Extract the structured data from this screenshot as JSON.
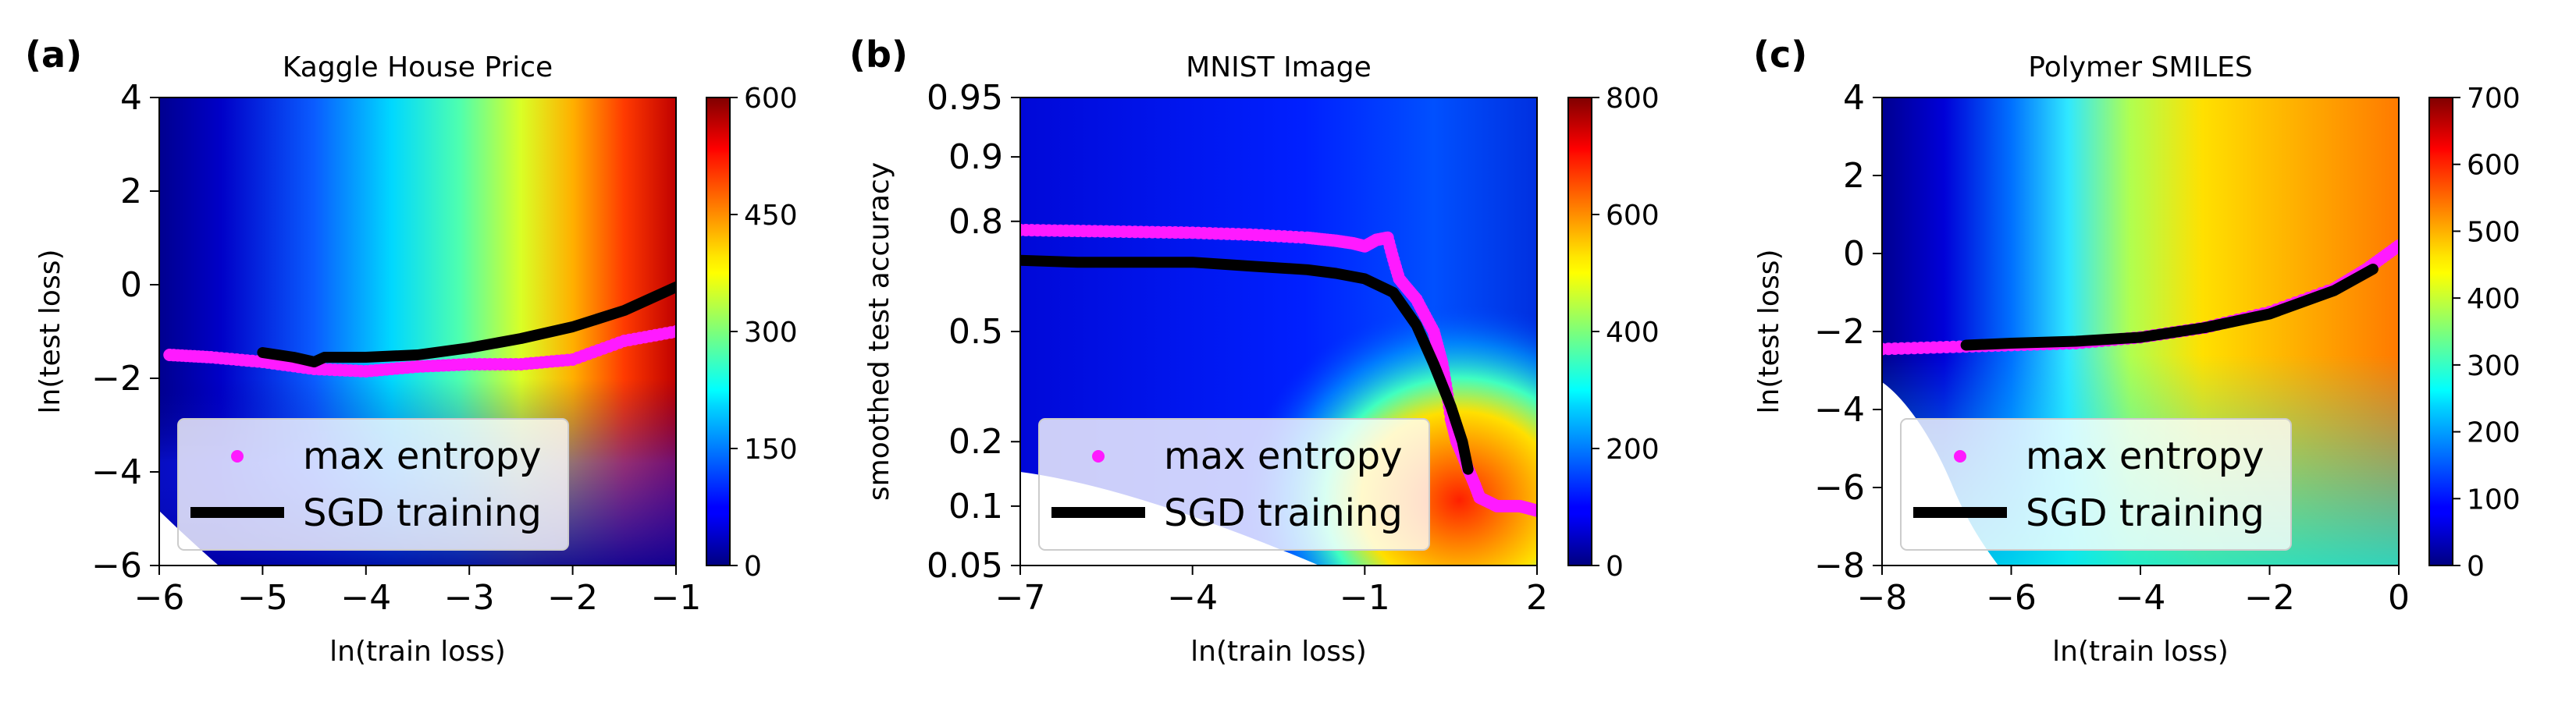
{
  "chart_data": [
    {
      "type": "heatmap",
      "panel_label": "(a)",
      "title": "Kaggle House Price",
      "xlabel": "ln(train loss)",
      "ylabel": "ln(test loss)",
      "xlim": [
        -6,
        -1
      ],
      "ylim": [
        -6,
        4
      ],
      "xticks": [
        -6,
        -5,
        -4,
        -3,
        -2,
        -1
      ],
      "yticks": [
        4,
        2,
        0,
        -2,
        -4,
        -6
      ],
      "xtick_labels": [
        "−6",
        "−5",
        "−4",
        "−3",
        "−2",
        "−1"
      ],
      "ytick_labels": [
        "4",
        "2",
        "0",
        "−2",
        "−4",
        "−6"
      ],
      "colorbar": {
        "range": [
          0,
          600
        ],
        "ticks": [
          600,
          450,
          300,
          150,
          0
        ],
        "tick_labels": [
          "600",
          "450",
          "300",
          "150",
          "0"
        ]
      },
      "legend": {
        "location": "lower-left",
        "entries": [
          "max entropy",
          "SGD training"
        ]
      },
      "series": [
        {
          "name": "max entropy",
          "style": "magenta dots",
          "x": [
            -5.9,
            -5.5,
            -5.0,
            -4.5,
            -4.0,
            -3.5,
            -3.0,
            -2.5,
            -2.0,
            -1.5,
            -1.0
          ],
          "y": [
            -1.5,
            -1.55,
            -1.65,
            -1.8,
            -1.85,
            -1.75,
            -1.7,
            -1.7,
            -1.6,
            -1.2,
            -1.0
          ]
        },
        {
          "name": "SGD training",
          "style": "black thick line",
          "x": [
            -5.0,
            -4.7,
            -4.5,
            -4.4,
            -4.0,
            -3.5,
            -3.0,
            -2.5,
            -2.0,
            -1.5,
            -1.0
          ],
          "y": [
            -1.45,
            -1.55,
            -1.65,
            -1.55,
            -1.55,
            -1.5,
            -1.35,
            -1.15,
            -0.9,
            -0.55,
            -0.05
          ]
        }
      ]
    },
    {
      "type": "heatmap",
      "panel_label": "(b)",
      "title": "MNIST Image",
      "xlabel": "ln(train loss)",
      "ylabel": "smoothed test accuracy",
      "xlim": [
        -7,
        2
      ],
      "ylim": [
        0.05,
        0.95
      ],
      "xticks": [
        -7,
        -4,
        -1,
        2
      ],
      "yticks": [
        0.95,
        0.9,
        0.8,
        0.5,
        0.2,
        0.1,
        0.05
      ],
      "xtick_labels": [
        "−7",
        "−4",
        "−1",
        "2"
      ],
      "ytick_labels": [
        "0.95",
        "0.9",
        "0.8",
        "0.5",
        "0.2",
        "0.1",
        "0.05"
      ],
      "colorbar": {
        "range": [
          0,
          800
        ],
        "ticks": [
          800,
          600,
          400,
          200,
          0
        ],
        "tick_labels": [
          "800",
          "600",
          "400",
          "200",
          "0"
        ]
      },
      "legend": {
        "location": "lower-left",
        "entries": [
          "max entropy",
          "SGD training"
        ]
      },
      "series": [
        {
          "name": "max entropy",
          "style": "magenta dots",
          "x": [
            -7.0,
            -6.0,
            -5.0,
            -4.0,
            -3.0,
            -2.0,
            -1.5,
            -1.2,
            -1.0,
            -0.8,
            -0.6,
            -0.4,
            -0.1,
            0.2,
            0.35,
            0.5,
            0.6,
            0.8,
            1.0,
            1.3,
            1.7,
            2.0
          ],
          "y": [
            0.782,
            0.78,
            0.778,
            0.776,
            0.772,
            0.765,
            0.758,
            0.752,
            0.745,
            0.76,
            0.765,
            0.66,
            0.6,
            0.5,
            0.4,
            0.25,
            0.2,
            0.15,
            0.11,
            0.1,
            0.1,
            0.095
          ]
        },
        {
          "name": "SGD training",
          "style": "black thick line",
          "x": [
            -7.0,
            -6.0,
            -5.0,
            -4.0,
            -3.0,
            -2.0,
            -1.5,
            -1.0,
            -0.5,
            -0.1,
            0.2,
            0.5,
            0.7,
            0.8
          ],
          "y": [
            0.71,
            0.705,
            0.705,
            0.705,
            0.695,
            0.685,
            0.675,
            0.66,
            0.62,
            0.52,
            0.4,
            0.28,
            0.2,
            0.15
          ]
        }
      ]
    },
    {
      "type": "heatmap",
      "panel_label": "(c)",
      "title": "Polymer SMILES",
      "xlabel": "ln(train loss)",
      "ylabel": "ln(test loss)",
      "xlim": [
        -8,
        0
      ],
      "ylim": [
        -8,
        4
      ],
      "xticks": [
        -8,
        -6,
        -4,
        -2,
        0
      ],
      "yticks": [
        4,
        2,
        0,
        -2,
        -4,
        -6,
        -8
      ],
      "xtick_labels": [
        "−8",
        "−6",
        "−4",
        "−2",
        "0"
      ],
      "ytick_labels": [
        "4",
        "2",
        "0",
        "−2",
        "−4",
        "−6",
        "−8"
      ],
      "colorbar": {
        "range": [
          0,
          700
        ],
        "ticks": [
          700,
          600,
          500,
          400,
          300,
          200,
          100,
          0
        ],
        "tick_labels": [
          "700",
          "600",
          "500",
          "400",
          "300",
          "200",
          "100",
          "0"
        ]
      },
      "legend": {
        "location": "lower-left",
        "entries": [
          "max entropy",
          "SGD training"
        ]
      },
      "series": [
        {
          "name": "max entropy",
          "style": "magenta dots",
          "x": [
            -8.0,
            -7.0,
            -6.0,
            -5.0,
            -4.0,
            -3.0,
            -2.0,
            -1.0,
            -0.5,
            0.0
          ],
          "y": [
            -2.45,
            -2.4,
            -2.35,
            -2.3,
            -2.15,
            -1.9,
            -1.5,
            -0.9,
            -0.4,
            0.2
          ]
        },
        {
          "name": "SGD training",
          "style": "black thick line",
          "x": [
            -6.7,
            -6.0,
            -5.0,
            -4.0,
            -3.0,
            -2.0,
            -1.0,
            -0.4
          ],
          "y": [
            -2.35,
            -2.3,
            -2.25,
            -2.15,
            -1.9,
            -1.55,
            -0.95,
            -0.4
          ]
        }
      ]
    }
  ]
}
